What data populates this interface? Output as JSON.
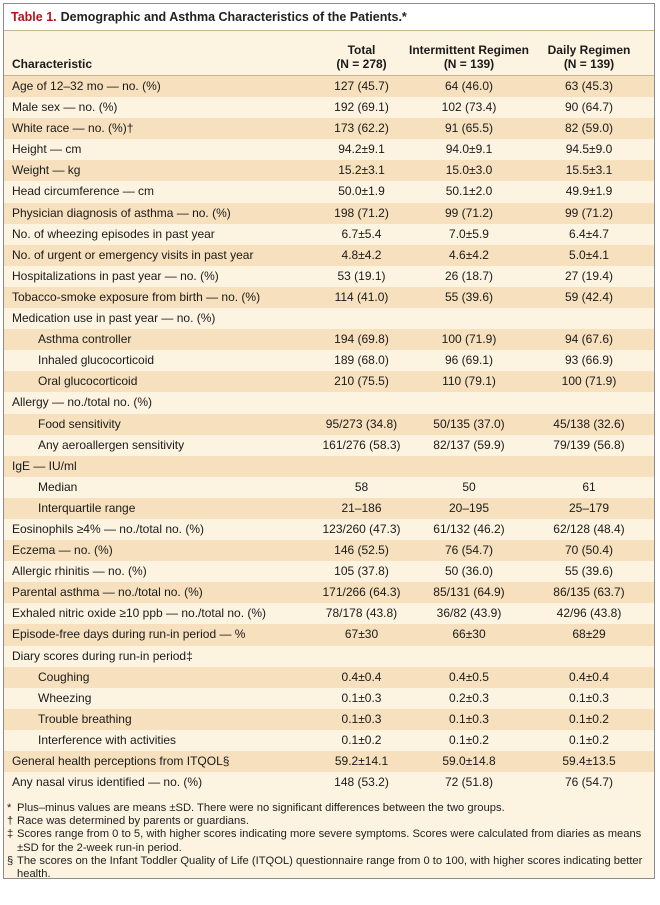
{
  "table": {
    "label": "Table 1.",
    "title": "Demographic and Asthma Characteristics of the Patients.*",
    "headers": {
      "characteristic": "Characteristic",
      "total": [
        "Total",
        "(N = 278)"
      ],
      "intermittent": [
        "Intermittent Regimen",
        "(N = 139)"
      ],
      "daily": [
        "Daily Regimen",
        "(N = 139)"
      ]
    },
    "rows": [
      {
        "label": "Age of 12–32 mo — no. (%)",
        "total": "127 (45.7)",
        "intermittent": "64 (46.0)",
        "daily": "63 (45.3)"
      },
      {
        "label": "Male sex — no. (%)",
        "total": "192 (69.1)",
        "intermittent": "102 (73.4)",
        "daily": "90 (64.7)"
      },
      {
        "label": "White race — no. (%)†",
        "total": "173 (62.2)",
        "intermittent": "91 (65.5)",
        "daily": "82 (59.0)"
      },
      {
        "label": "Height — cm",
        "total": "94.2±9.1",
        "intermittent": "94.0±9.1",
        "daily": "94.5±9.0"
      },
      {
        "label": "Weight — kg",
        "total": "15.2±3.1",
        "intermittent": "15.0±3.0",
        "daily": "15.5±3.1"
      },
      {
        "label": "Head circumference — cm",
        "total": "50.0±1.9",
        "intermittent": "50.1±2.0",
        "daily": "49.9±1.9"
      },
      {
        "label": "Physician diagnosis of asthma — no. (%)",
        "total": "198 (71.2)",
        "intermittent": "99 (71.2)",
        "daily": "99 (71.2)"
      },
      {
        "label": "No. of wheezing episodes in past year",
        "total": "6.7±5.4",
        "intermittent": "7.0±5.9",
        "daily": "6.4±4.7"
      },
      {
        "label": "No. of urgent or emergency visits in past year",
        "total": "4.8±4.2",
        "intermittent": "4.6±4.2",
        "daily": "5.0±4.1"
      },
      {
        "label": "Hospitalizations in past year — no. (%)",
        "total": "53 (19.1)",
        "intermittent": "26 (18.7)",
        "daily": "27 (19.4)"
      },
      {
        "label": "Tobacco-smoke exposure from birth — no. (%)",
        "total": "114 (41.0)",
        "intermittent": "55 (39.6)",
        "daily": "59 (42.4)"
      },
      {
        "label": "Medication use in past year — no. (%)",
        "total": "",
        "intermittent": "",
        "daily": ""
      },
      {
        "label": "Asthma controller",
        "indent": true,
        "total": "194 (69.8)",
        "intermittent": "100 (71.9)",
        "daily": "94 (67.6)"
      },
      {
        "label": "Inhaled glucocorticoid",
        "indent": true,
        "total": "189 (68.0)",
        "intermittent": "96 (69.1)",
        "daily": "93 (66.9)"
      },
      {
        "label": "Oral glucocorticoid",
        "indent": true,
        "total": "210 (75.5)",
        "intermittent": "110 (79.1)",
        "daily": "100 (71.9)"
      },
      {
        "label": "Allergy — no./total no. (%)",
        "total": "",
        "intermittent": "",
        "daily": ""
      },
      {
        "label": "Food sensitivity",
        "indent": true,
        "total": "95/273 (34.8)",
        "intermittent": "50/135 (37.0)",
        "daily": "45/138 (32.6)"
      },
      {
        "label": "Any aeroallergen sensitivity",
        "indent": true,
        "total": "161/276 (58.3)",
        "intermittent": "82/137 (59.9)",
        "daily": "79/139 (56.8)"
      },
      {
        "label": "IgE — IU/ml",
        "total": "",
        "intermittent": "",
        "daily": ""
      },
      {
        "label": "Median",
        "indent": true,
        "total": "58",
        "intermittent": "50",
        "daily": "61"
      },
      {
        "label": "Interquartile range",
        "indent": true,
        "total": "21–186",
        "intermittent": "20–195",
        "daily": "25–179"
      },
      {
        "label": "Eosinophils ≥4% — no./total no. (%)",
        "total": "123/260 (47.3)",
        "intermittent": "61/132 (46.2)",
        "daily": "62/128 (48.4)"
      },
      {
        "label": "Eczema — no. (%)",
        "total": "146 (52.5)",
        "intermittent": "76 (54.7)",
        "daily": "70 (50.4)"
      },
      {
        "label": "Allergic rhinitis — no. (%)",
        "total": "105 (37.8)",
        "intermittent": "50 (36.0)",
        "daily": "55 (39.6)"
      },
      {
        "label": "Parental asthma — no./total no. (%)",
        "total": "171/266 (64.3)",
        "intermittent": "85/131 (64.9)",
        "daily": "86/135 (63.7)"
      },
      {
        "label": "Exhaled nitric oxide ≥10 ppb — no./total no. (%)",
        "total": "78/178 (43.8)",
        "intermittent": "36/82 (43.9)",
        "daily": "42/96 (43.8)"
      },
      {
        "label": "Episode-free days during run-in period — %",
        "total": "67±30",
        "intermittent": "66±30",
        "daily": "68±29"
      },
      {
        "label": "Diary scores during run-in period‡",
        "total": "",
        "intermittent": "",
        "daily": ""
      },
      {
        "label": "Coughing",
        "indent": true,
        "total": "0.4±0.4",
        "intermittent": "0.4±0.5",
        "daily": "0.4±0.4"
      },
      {
        "label": "Wheezing",
        "indent": true,
        "total": "0.1±0.3",
        "intermittent": "0.2±0.3",
        "daily": "0.1±0.3"
      },
      {
        "label": "Trouble breathing",
        "indent": true,
        "total": "0.1±0.3",
        "intermittent": "0.1±0.3",
        "daily": "0.1±0.2"
      },
      {
        "label": "Interference with activities",
        "indent": true,
        "total": "0.1±0.2",
        "intermittent": "0.1±0.2",
        "daily": "0.1±0.2"
      },
      {
        "label": "General health perceptions from ITQOL§",
        "total": "59.2±14.1",
        "intermittent": "59.0±14.8",
        "daily": "59.4±13.5"
      },
      {
        "label": "Any nasal virus identified — no. (%)",
        "total": "148 (53.2)",
        "intermittent": "72 (51.8)",
        "daily": "76 (54.7)"
      }
    ],
    "footnotes": [
      {
        "symbol": "*",
        "text": "Plus–minus values are means ±SD. There were no significant differences between the two groups."
      },
      {
        "symbol": "†",
        "text": "Race was determined by parents or guardians."
      },
      {
        "symbol": "‡",
        "text": "Scores range from 0 to 5, with higher scores indicating more severe symptoms. Scores were calculated from diaries as means ±SD for the 2-week run-in period."
      },
      {
        "symbol": "§",
        "text": "The scores on the Infant Toddler Quality of Life (ITQOL) questionnaire range from 0 to 100, with higher scores indicating better health."
      }
    ]
  }
}
